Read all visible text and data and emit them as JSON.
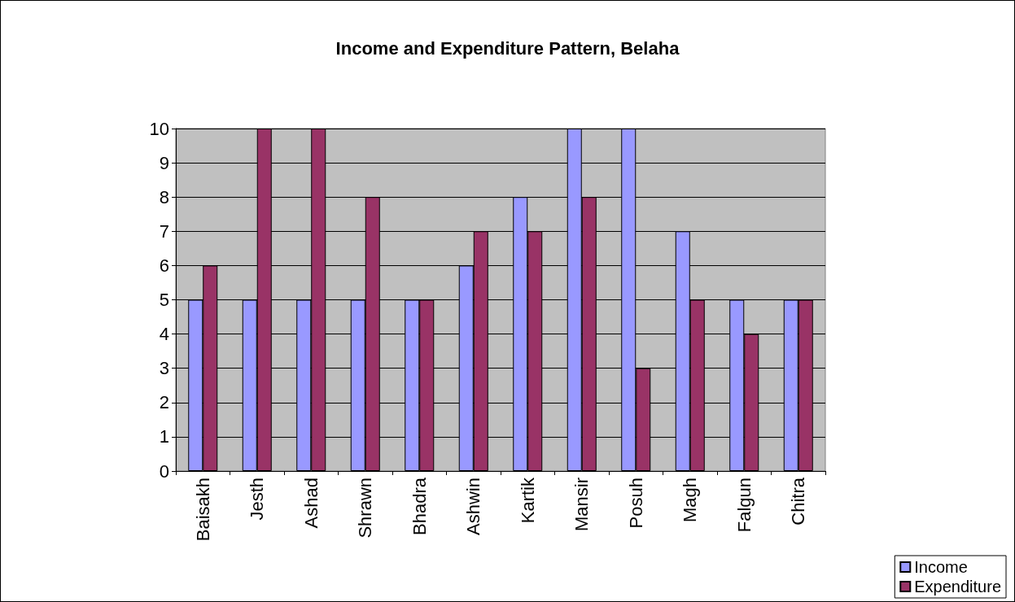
{
  "chart_data": {
    "type": "bar",
    "title": "Income and Expenditure Pattern, Belaha",
    "categories": [
      "Baisakh",
      "Jesth",
      "Ashad",
      "Shrawn",
      "Bhadra",
      "Ashwin",
      "Kartik",
      "Mansir",
      "Posuh",
      "Magh",
      "Falgun",
      "Chitra"
    ],
    "series": [
      {
        "name": "Income",
        "color": "#9999ff",
        "values": [
          5,
          5,
          5,
          5,
          5,
          6,
          8,
          10,
          10,
          7,
          5,
          5
        ]
      },
      {
        "name": "Expenditure",
        "color": "#993366",
        "values": [
          6,
          10,
          10,
          8,
          5,
          7,
          7,
          8,
          3,
          5,
          4,
          5
        ]
      }
    ],
    "ylim": [
      0,
      10
    ],
    "yticks": [
      0,
      1,
      2,
      3,
      4,
      5,
      6,
      7,
      8,
      9,
      10
    ],
    "grid": "y",
    "legend": "bottom right"
  }
}
